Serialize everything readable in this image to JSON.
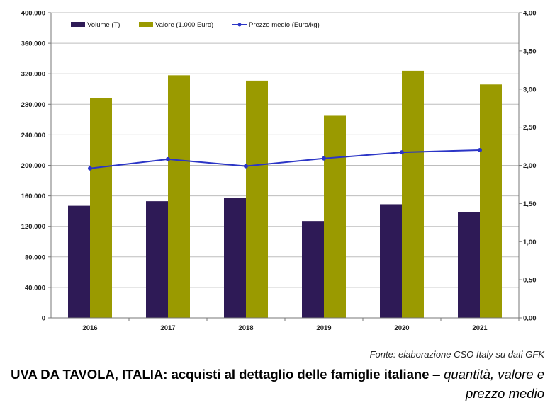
{
  "chart_data": {
    "type": "bar",
    "categories": [
      "2016",
      "2017",
      "2018",
      "2019",
      "2020",
      "2021"
    ],
    "series": [
      {
        "name": "Volume (T)",
        "kind": "bar",
        "axis": "left",
        "color": "#2e1a56",
        "values": [
          147000,
          153000,
          157000,
          127000,
          149000,
          139000
        ]
      },
      {
        "name": "Valore (1.000 Euro)",
        "kind": "bar",
        "axis": "left",
        "color": "#9a9a00",
        "values": [
          288000,
          318000,
          311000,
          265000,
          324000,
          306000
        ]
      },
      {
        "name": "Prezzo medio (Euro/kg)",
        "kind": "line",
        "axis": "right",
        "color": "#2b35c6",
        "values": [
          1.96,
          2.08,
          1.99,
          2.09,
          2.17,
          2.2
        ]
      }
    ],
    "y_left": {
      "min": 0,
      "max": 400000,
      "ticks": [
        "0",
        "40.000",
        "80.000",
        "120.000",
        "160.000",
        "200.000",
        "240.000",
        "280.000",
        "320.000",
        "360.000",
        "400.000"
      ]
    },
    "y_right": {
      "min": 0,
      "max": 4,
      "ticks": [
        "0,00",
        "0,50",
        "1,00",
        "1,50",
        "2,00",
        "2,50",
        "3,00",
        "3,50",
        "4,00"
      ]
    },
    "grid": true,
    "legend_position": "top-left"
  },
  "source_text": "Fonte: elaborazione CSO Italy su dati GFK",
  "title": {
    "bold_part": "UVA DA TAVOLA, ITALIA: acquisti al dettaglio delle famiglie italiane",
    "dash": " – ",
    "italic_part": "quantità, valore e prezzo medio"
  }
}
